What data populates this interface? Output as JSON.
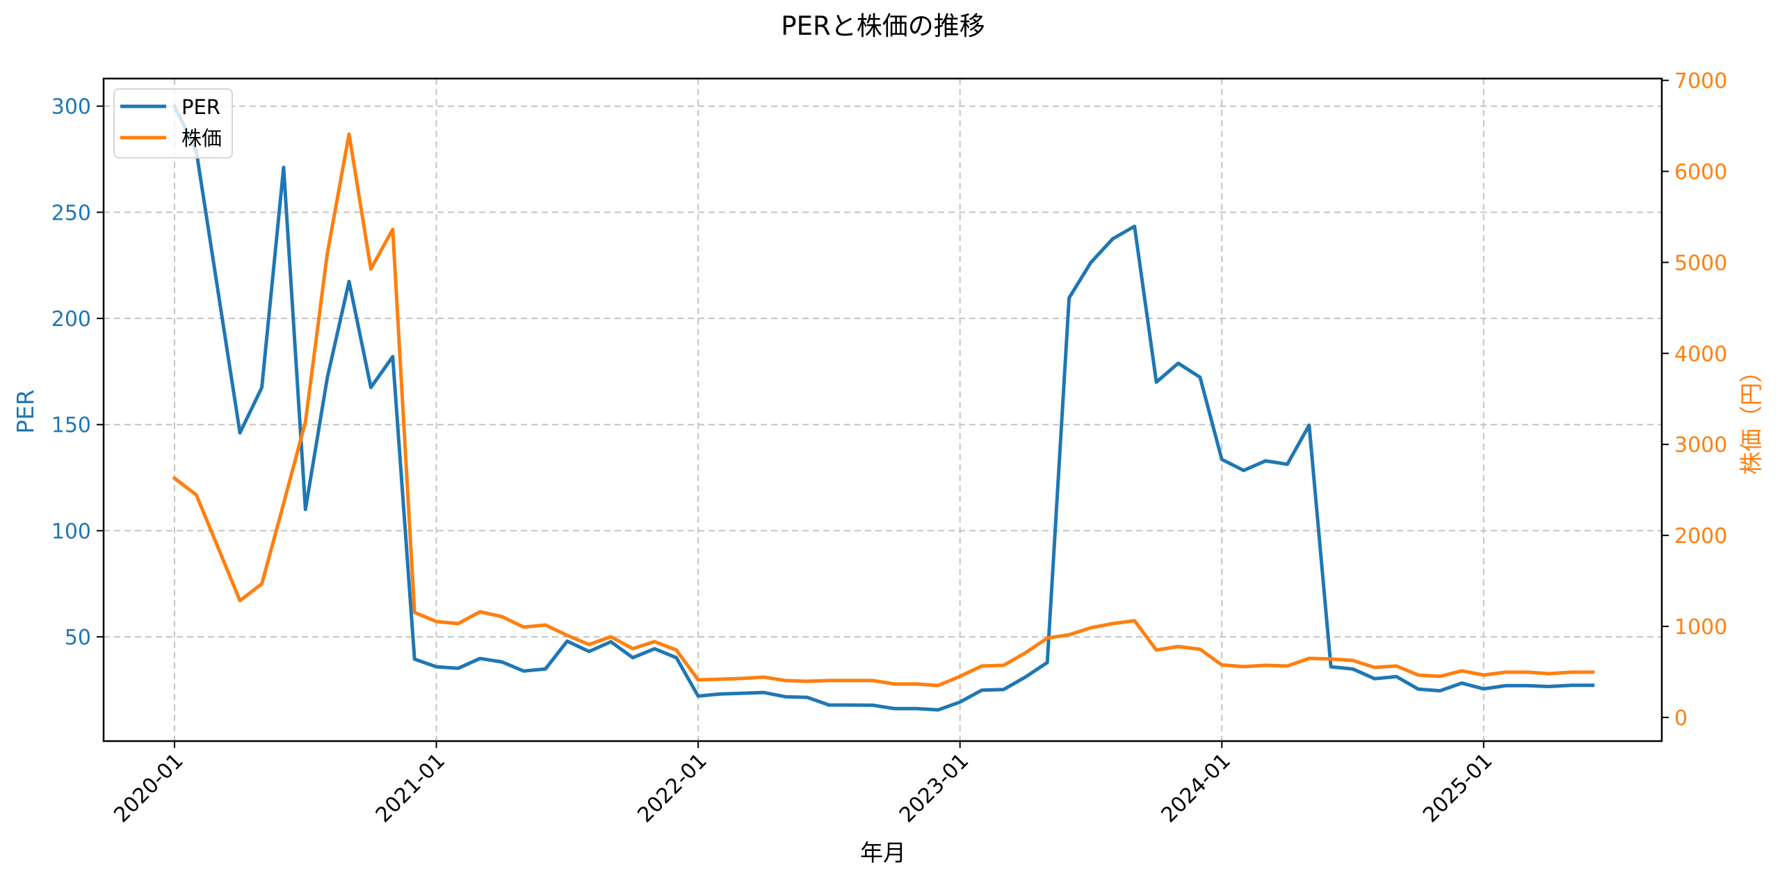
{
  "chart_data": {
    "type": "line",
    "title": "PERと株価の推移",
    "xlabel": "年月",
    "ylabel": "PER",
    "y2label": "株価（円）",
    "x_tick_labels": [
      "2020-01",
      "2021-01",
      "2022-01",
      "2023-01",
      "2024-01",
      "2025-01"
    ],
    "x_tick_rotation": 45,
    "yticks": [
      50,
      100,
      150,
      200,
      250,
      300
    ],
    "y2ticks": [
      0,
      1000,
      2000,
      3000,
      4000,
      5000,
      6000,
      7000
    ],
    "ylim": [
      0.9,
      313
    ],
    "y2lim": [
      -260,
      7020
    ],
    "grid": true,
    "legend_position": "upper left",
    "x": [
      "2020-01",
      "2020-02",
      "2020-04",
      "2020-05",
      "2020-06",
      "2020-07",
      "2020-08",
      "2020-09",
      "2020-10",
      "2020-11",
      "2020-12",
      "2021-01",
      "2021-02",
      "2021-03",
      "2021-04",
      "2021-05",
      "2021-06",
      "2021-07",
      "2021-08",
      "2021-09",
      "2021-10",
      "2021-11",
      "2021-12",
      "2022-01",
      "2022-02",
      "2022-03",
      "2022-04",
      "2022-05",
      "2022-06",
      "2022-07",
      "2022-08",
      "2022-09",
      "2022-10",
      "2022-11",
      "2022-12",
      "2023-01",
      "2023-02",
      "2023-03",
      "2023-04",
      "2023-05",
      "2023-06",
      "2023-07",
      "2023-08",
      "2023-09",
      "2023-10",
      "2023-11",
      "2023-12",
      "2024-01",
      "2024-02",
      "2024-03",
      "2024-04",
      "2024-05",
      "2024-06",
      "2024-07",
      "2024-08",
      "2024-09",
      "2024-10",
      "2024-11",
      "2024-12",
      "2025-01",
      "2025-02",
      "2025-03",
      "2025-04",
      "2025-05",
      "2025-06"
    ],
    "series": [
      {
        "name": "PER",
        "axis": "left",
        "color": "#1f77b4",
        "values": [
          300.0,
          278.7,
          146.1,
          167.4,
          271.1,
          110.0,
          172.0,
          217.4,
          167.5,
          182.0,
          39.5,
          35.9,
          35.2,
          39.8,
          38.2,
          33.9,
          34.9,
          48.0,
          43.1,
          47.7,
          40.2,
          44.4,
          40.2,
          22.1,
          23.1,
          23.4,
          23.8,
          21.8,
          21.5,
          17.9,
          17.9,
          17.8,
          16.2,
          16.2,
          15.6,
          19.3,
          24.9,
          25.2,
          31.1,
          37.9,
          209.7,
          226.4,
          237.5,
          243.4,
          170.0,
          178.9,
          172.3,
          133.6,
          128.4,
          132.9,
          131.3,
          149.7,
          35.9,
          34.9,
          30.3,
          31.3,
          25.4,
          24.6,
          28.2,
          25.5,
          27.0,
          27.0,
          26.6,
          27.2,
          27.2
        ]
      },
      {
        "name": "株価",
        "axis": "right",
        "color": "#ff7f0e",
        "values": [
          2628,
          2445,
          1283,
          1467,
          2350,
          3247,
          5096,
          6410,
          4928,
          5363,
          1154,
          1054,
          1031,
          1161,
          1108,
          993,
          1016,
          901,
          802,
          886,
          756,
          833,
          741,
          413,
          420,
          428,
          443,
          405,
          397,
          405,
          405,
          405,
          367,
          367,
          351,
          451,
          565,
          573,
          710,
          871,
          909,
          985,
          1031,
          1062,
          741,
          779,
          749,
          577,
          558,
          573,
          565,
          649,
          642,
          626,
          550,
          565,
          466,
          451,
          512,
          466,
          497,
          497,
          481,
          497,
          497
        ]
      }
    ]
  },
  "legend": {
    "items": [
      {
        "label": "PER",
        "color": "#1f77b4"
      },
      {
        "label": "株価",
        "color": "#ff7f0e"
      }
    ]
  },
  "colors": {
    "left_axis": "#1f77b4",
    "right_axis": "#ff7f0e",
    "grid": "#c4c4c4",
    "frame": "#000000"
  }
}
